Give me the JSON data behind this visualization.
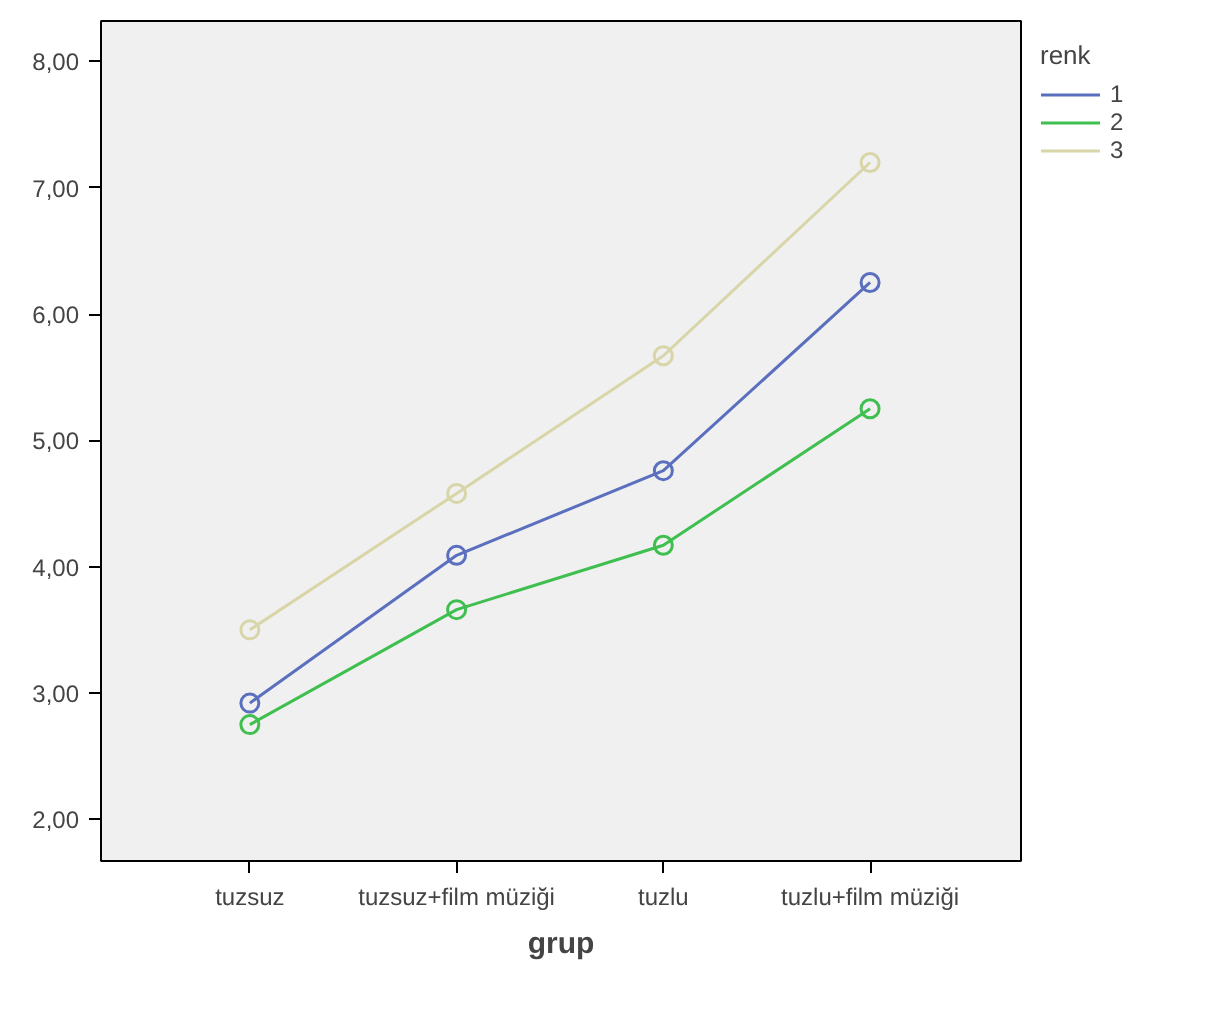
{
  "chart_data": {
    "type": "line",
    "xlabel": "grup",
    "legend_title": "renk",
    "legend": "top right",
    "marker": "circle",
    "line_style": "solid",
    "grid": false,
    "categories": [
      "tuzsuz",
      "tuzsuz+film müziği",
      "tuzlu",
      "tuzlu+film müziği"
    ],
    "ylim": [
      1.67,
      8.32
    ],
    "yticks": [
      {
        "value": 2,
        "label": "2,00"
      },
      {
        "value": 3,
        "label": "3,00"
      },
      {
        "value": 4,
        "label": "4,00"
      },
      {
        "value": 5,
        "label": "5,00"
      },
      {
        "value": 6,
        "label": "6,00"
      },
      {
        "value": 7,
        "label": "7,00"
      },
      {
        "value": 8,
        "label": "8,00"
      }
    ],
    "series": [
      {
        "name": "1",
        "color": "#5b6fbf",
        "values": [
          2.92,
          4.09,
          4.76,
          6.25
        ]
      },
      {
        "name": "2",
        "color": "#3fbf4f",
        "values": [
          2.75,
          3.66,
          4.17,
          5.25
        ]
      },
      {
        "name": "3",
        "color": "#d8d6a8",
        "values": [
          3.5,
          4.58,
          5.67,
          7.2
        ]
      }
    ]
  }
}
